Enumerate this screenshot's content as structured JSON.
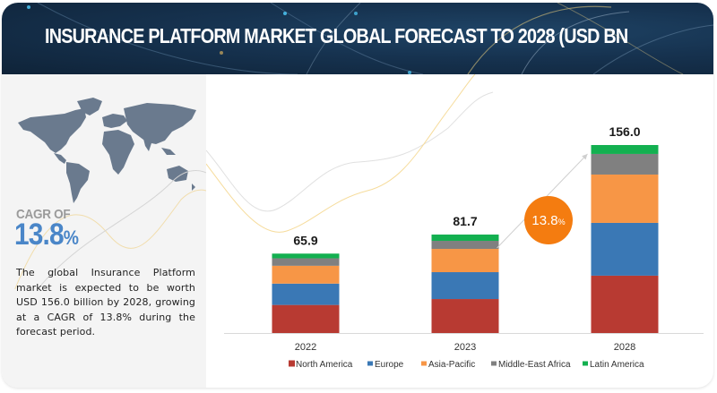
{
  "banner": {
    "title": "INSURANCE PLATFORM MARKET GLOBAL FORECAST TO 2028 (USD BN"
  },
  "left_panel": {
    "map_icon": "world-map",
    "cagr_label": "CAGR OF",
    "cagr_number": "13.8",
    "cagr_percent": "%",
    "summary": "The global Insurance Platform market is expected to be worth USD 156.0 billion by 2028, growing at a CAGR of 13.8% during the forecast period."
  },
  "badge": {
    "number": "13.8",
    "percent": "%",
    "color": "#f47c10"
  },
  "colors": {
    "North America": "#b83a32",
    "Europe": "#3a78b5",
    "Asia-Pacific": "#f79646",
    "Middle-East Africa": "#808080",
    "Latin America": "#13b050"
  },
  "chart_data": {
    "type": "bar",
    "stacked": true,
    "title": "INSURANCE PLATFORM MARKET GLOBAL FORECAST TO 2028 (USD BN",
    "xlabel": "",
    "ylabel": "",
    "categories": [
      "2022",
      "2023",
      "2028"
    ],
    "totals": [
      "65.9",
      "81.7",
      "156.0"
    ],
    "series": [
      {
        "name": "North America",
        "values": [
          23.3,
          28.2,
          47.6
        ]
      },
      {
        "name": "Europe",
        "values": [
          17.7,
          22.3,
          43.8
        ]
      },
      {
        "name": "Asia-Pacific",
        "values": [
          14.8,
          19.3,
          40.1
        ]
      },
      {
        "name": "Middle-East Africa",
        "values": [
          6.2,
          6.7,
          17.1
        ]
      },
      {
        "name": "Latin America",
        "values": [
          3.9,
          5.2,
          7.4
        ]
      }
    ],
    "ylim": [
      0,
      156.0
    ],
    "grid": false,
    "legend_position": "bottom",
    "annotation": "13.8%"
  }
}
